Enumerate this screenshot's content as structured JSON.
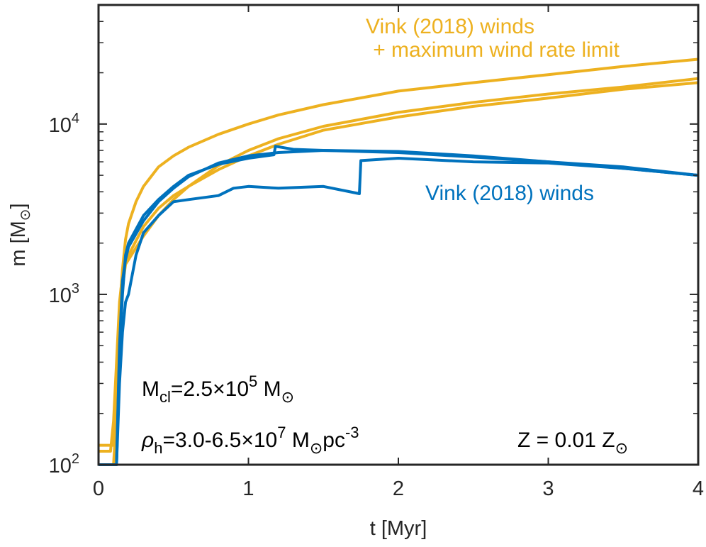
{
  "chart_data": {
    "type": "line",
    "title": "",
    "xlabel": "t [Myr]",
    "ylabel_base": "m [M",
    "ylabel_sub": "⊙",
    "ylabel_close": "]",
    "xlim": [
      0,
      4
    ],
    "ylim": [
      100,
      50000
    ],
    "yscale": "log",
    "xticks": [
      0,
      1,
      2,
      3,
      4
    ],
    "xtick_labels": [
      "0",
      "1",
      "2",
      "3",
      "4"
    ],
    "yticks": [
      100,
      1000,
      10000
    ],
    "ytick_base": "10",
    "ytick_exps": [
      "2",
      "3",
      "4"
    ],
    "colors": {
      "yellow": "#EDB120",
      "blue": "#0072BD",
      "axis": "#262626"
    },
    "series": [
      {
        "name": "Vink (2018) winds + maximum wind rate limit, run 1",
        "color": "#EDB120",
        "x": [
          0,
          0.06,
          0.1,
          0.12,
          0.14,
          0.16,
          0.18,
          0.2,
          0.25,
          0.3,
          0.4,
          0.5,
          0.6,
          0.8,
          1.0,
          1.2,
          1.5,
          2.0,
          2.5,
          3.0,
          3.5,
          4.0
        ],
        "y": [
          130,
          130,
          130,
          300,
          800,
          1400,
          2100,
          2600,
          3500,
          4300,
          5600,
          6500,
          7300,
          8700,
          10000,
          11300,
          13000,
          15600,
          17500,
          19500,
          21800,
          24000
        ]
      },
      {
        "name": "Vink (2018) winds + maximum wind rate limit, run 2",
        "color": "#EDB120",
        "x": [
          0,
          0.1,
          0.12,
          0.14,
          0.16,
          0.18,
          0.2,
          0.3,
          0.4,
          0.5,
          0.6,
          0.8,
          1.0,
          1.2,
          1.5,
          2.0,
          2.5,
          3.0,
          3.5,
          4.0
        ],
        "y": [
          100,
          100,
          200,
          600,
          1100,
          1500,
          1700,
          2500,
          3200,
          3800,
          4300,
          5400,
          6500,
          7600,
          9200,
          11000,
          12700,
          14200,
          16000,
          17500
        ]
      },
      {
        "name": "Vink (2018) winds + maximum wind rate limit, run 3",
        "color": "#EDB120",
        "x": [
          0,
          0.08,
          0.1,
          0.12,
          0.14,
          0.16,
          0.18,
          0.2,
          0.3,
          0.4,
          0.5,
          0.6,
          0.8,
          1.0,
          1.2,
          1.5,
          2.0,
          2.5,
          3.0,
          3.5,
          4.0
        ],
        "y": [
          120,
          120,
          180,
          400,
          900,
          1300,
          1500,
          1600,
          2200,
          2900,
          3600,
          4300,
          5700,
          7000,
          8200,
          9700,
          11700,
          13400,
          15000,
          16500,
          18500
        ]
      },
      {
        "name": "Vink (2018) winds, run 1",
        "color": "#0072BD",
        "x": [
          0,
          0.12,
          0.14,
          0.16,
          0.18,
          0.2,
          0.3,
          0.4,
          0.5,
          0.6,
          0.8,
          1.0,
          1.17,
          1.18,
          1.3,
          1.5,
          2.0,
          2.5,
          3.0,
          3.5,
          4.0
        ],
        "y": [
          100,
          100,
          450,
          1000,
          1700,
          2000,
          2900,
          3600,
          4300,
          5000,
          5800,
          6300,
          6600,
          7400,
          7100,
          7000,
          6800,
          6400,
          6000,
          5600,
          5000
        ]
      },
      {
        "name": "Vink (2018) winds, run 2",
        "color": "#0072BD",
        "x": [
          0,
          0.12,
          0.14,
          0.16,
          0.18,
          0.2,
          0.3,
          0.4,
          0.5,
          0.6,
          0.8,
          1.0,
          1.2,
          1.5,
          2.0,
          2.5,
          3.0,
          3.5,
          4.0
        ],
        "y": [
          100,
          100,
          500,
          1200,
          1600,
          1900,
          2700,
          3500,
          4200,
          4900,
          5900,
          6500,
          6800,
          7000,
          6900,
          6500,
          6000,
          5500,
          5000
        ]
      },
      {
        "name": "Vink (2018) winds, run 3",
        "color": "#0072BD",
        "x": [
          0,
          0.12,
          0.14,
          0.16,
          0.18,
          0.2,
          0.25,
          0.3,
          0.4,
          0.5,
          0.6,
          0.8,
          0.9,
          1.0,
          1.2,
          1.5,
          1.74,
          1.75,
          2.0,
          2.5,
          3.0,
          3.5,
          4.0
        ],
        "y": [
          100,
          100,
          300,
          600,
          900,
          1000,
          1700,
          2300,
          2900,
          3500,
          3600,
          3800,
          4200,
          4300,
          4200,
          4300,
          3900,
          6100,
          6300,
          6000,
          5900,
          5500,
          5000
        ]
      }
    ],
    "annotations": {
      "yellow_line1": "Vink (2018) winds",
      "yellow_line2": "+ maximum wind rate limit",
      "blue": "Vink (2018) winds",
      "mcl_M": "M",
      "mcl_sub": "cl",
      "mcl_val": "=2.5×10",
      "mcl_exp": "5",
      "mcl_unit": " M",
      "mcl_unit_sub": "⊙",
      "rho_sym": "ρ",
      "rho_sub": "h",
      "rho_val": "=3.0-6.5×10",
      "rho_exp": "7",
      "rho_unit": " M",
      "rho_unit_sub": "⊙",
      "rho_pc": "pc",
      "rho_pc_exp": "-3",
      "z_text": "Z = 0.01 Z",
      "z_sub": "⊙"
    }
  }
}
